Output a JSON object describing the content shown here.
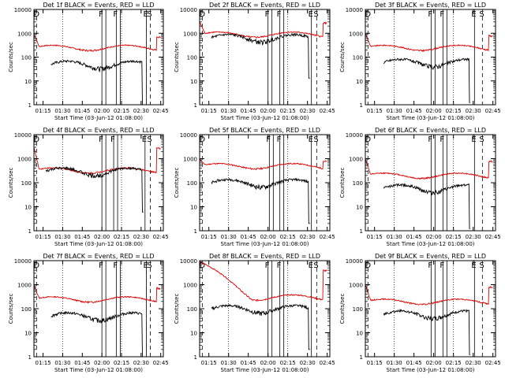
{
  "figure": {
    "colors": {
      "events": "#000000",
      "lld": "#dd0000",
      "background": "#ffffff"
    }
  },
  "chart_data": [
    {
      "type": "line",
      "title": "Det 1f BLACK = Events, RED = LLD",
      "xlabel": "Start Time (03-Jun-12 01:08:00)",
      "ylabel": "Counts/sec",
      "x_ticks": [
        "01:15",
        "01:30",
        "01:45",
        "02:00",
        "02:15",
        "02:30",
        "02:45"
      ],
      "y_ticks": [
        "1",
        "10",
        "100",
        "1000",
        "10000"
      ],
      "ylim": [
        1,
        10000
      ],
      "scale_y": "log",
      "markers": [
        {
          "label": "D",
          "time": "01:10"
        },
        {
          "label": "F",
          "time": "02:00"
        },
        {
          "label": "F",
          "time": "02:11"
        },
        {
          "label": "E",
          "time": "02:34"
        },
        {
          "label": "S",
          "time": "02:37"
        }
      ],
      "events": {
        "start": "01:21",
        "end": "02:32",
        "level": 50
      },
      "lld": {
        "start": "01:08",
        "end": "02:45",
        "level": 250,
        "start_level": 900,
        "end_level": 900
      },
      "series": [
        {
          "name": "Events"
        },
        {
          "name": "LLD"
        }
      ]
    },
    {
      "type": "line",
      "title": "Det 2f BLACK = Events, RED = LLD",
      "xlabel": "Start Time (03-Jun-12 01:08:00)",
      "ylabel": "Counts/sec",
      "x_ticks": [
        "01:15",
        "01:30",
        "01:45",
        "02:00",
        "02:15",
        "02:30",
        "02:45"
      ],
      "y_ticks": [
        "1",
        "10",
        "100",
        "1000",
        "10000"
      ],
      "ylim": [
        1,
        10000
      ],
      "scale_y": "log",
      "markers": [
        {
          "label": "D",
          "time": "01:10"
        },
        {
          "label": "F",
          "time": "02:00"
        },
        {
          "label": "F",
          "time": "02:09"
        },
        {
          "label": "E",
          "time": "02:33"
        },
        {
          "label": "S",
          "time": "02:37"
        }
      ],
      "events": {
        "start": "01:17",
        "end": "02:32",
        "level": 650
      },
      "lld": {
        "start": "01:08",
        "end": "02:45",
        "level": 900,
        "start_level": 3000,
        "end_level": 3500
      },
      "series": [
        {
          "name": "Events"
        },
        {
          "name": "LLD"
        }
      ]
    },
    {
      "type": "line",
      "title": "Det 3f BLACK = Events, RED = LLD",
      "xlabel": "Start Time (03-Jun-12 01:08:00)",
      "ylabel": "Counts/sec",
      "x_ticks": [
        "01:15",
        "01:30",
        "01:45",
        "02:00",
        "02:15",
        "02:30",
        "02:45"
      ],
      "y_ticks": [
        "1",
        "10",
        "100",
        "1000",
        "10000"
      ],
      "ylim": [
        1,
        10000
      ],
      "scale_y": "log",
      "markers": [
        {
          "label": "D",
          "time": "01:10"
        },
        {
          "label": "F",
          "time": "01:58"
        },
        {
          "label": "F",
          "time": "02:07"
        },
        {
          "label": "E",
          "time": "02:31"
        },
        {
          "label": "S",
          "time": "02:37"
        }
      ],
      "events": {
        "start": "01:22",
        "end": "02:28",
        "level": 60
      },
      "lld": {
        "start": "01:08",
        "end": "02:45",
        "level": 250,
        "start_level": 1000,
        "end_level": 1000
      },
      "series": [
        {
          "name": "Events"
        },
        {
          "name": "LLD"
        }
      ]
    },
    {
      "type": "line",
      "title": "Det 4f BLACK = Events, RED = LLD",
      "xlabel": "Start Time (03-Jun-12 01:08:00)",
      "ylabel": "Counts/sec",
      "x_ticks": [
        "01:15",
        "01:30",
        "01:45",
        "02:00",
        "02:15",
        "02:30",
        "02:45"
      ],
      "y_ticks": [
        "1",
        "10",
        "100",
        "1000",
        "10000"
      ],
      "ylim": [
        1,
        10000
      ],
      "scale_y": "log",
      "markers": [
        {
          "label": "D",
          "time": "01:10"
        },
        {
          "label": "F",
          "time": "02:00"
        },
        {
          "label": "F",
          "time": "02:09"
        },
        {
          "label": "E",
          "time": "02:33"
        },
        {
          "label": "S",
          "time": "02:37"
        }
      ],
      "events": {
        "start": "01:17",
        "end": "02:32",
        "level": 300
      },
      "lld": {
        "start": "01:08",
        "end": "02:45",
        "level": 330,
        "start_level": 3000,
        "end_level": 3500
      },
      "series": [
        {
          "name": "Events"
        },
        {
          "name": "LLD"
        }
      ]
    },
    {
      "type": "line",
      "title": "Det 5f BLACK = Events, RED = LLD",
      "xlabel": "Start Time (03-Jun-12 01:08:00)",
      "ylabel": "Counts/sec",
      "x_ticks": [
        "01:15",
        "01:30",
        "01:45",
        "02:00",
        "02:15",
        "02:30",
        "02:45"
      ],
      "y_ticks": [
        "1",
        "10",
        "100",
        "1000",
        "10000"
      ],
      "ylim": [
        1,
        10000
      ],
      "scale_y": "log",
      "markers": [
        {
          "label": "D",
          "time": "01:10"
        },
        {
          "label": "F",
          "time": "02:01"
        },
        {
          "label": "F",
          "time": "02:09"
        },
        {
          "label": "E",
          "time": "02:33"
        },
        {
          "label": "S",
          "time": "02:37"
        }
      ],
      "events": {
        "start": "01:17",
        "end": "02:32",
        "level": 100
      },
      "lld": {
        "start": "01:08",
        "end": "02:45",
        "level": 500,
        "start_level": 1000,
        "end_level": 1000
      },
      "series": [
        {
          "name": "Events"
        },
        {
          "name": "LLD"
        }
      ]
    },
    {
      "type": "line",
      "title": "Det 6f BLACK = Events, RED = LLD",
      "xlabel": "Start Time (03-Jun-12 01:08:00)",
      "ylabel": "Counts/sec",
      "x_ticks": [
        "01:15",
        "01:30",
        "01:45",
        "02:00",
        "02:15",
        "02:30",
        "02:45"
      ],
      "y_ticks": [
        "1",
        "10",
        "100",
        "1000",
        "10000"
      ],
      "ylim": [
        1,
        10000
      ],
      "scale_y": "log",
      "markers": [
        {
          "label": "D",
          "time": "01:10"
        },
        {
          "label": "F",
          "time": "01:58"
        },
        {
          "label": "F",
          "time": "02:07"
        },
        {
          "label": "E",
          "time": "02:31"
        },
        {
          "label": "S",
          "time": "02:37"
        }
      ],
      "events": {
        "start": "01:22",
        "end": "02:28",
        "level": 60
      },
      "lld": {
        "start": "01:08",
        "end": "02:45",
        "level": 200,
        "start_level": 1000,
        "end_level": 1000
      },
      "series": [
        {
          "name": "Events"
        },
        {
          "name": "LLD"
        }
      ]
    },
    {
      "type": "line",
      "title": "Det 7f BLACK = Events, RED = LLD",
      "xlabel": "Start Time (03-Jun-12 01:08:00)",
      "ylabel": "Counts/sec",
      "x_ticks": [
        "01:15",
        "01:30",
        "01:45",
        "02:00",
        "02:15",
        "02:30",
        "02:45"
      ],
      "y_ticks": [
        "1",
        "10",
        "100",
        "1000",
        "10000"
      ],
      "ylim": [
        1,
        10000
      ],
      "scale_y": "log",
      "markers": [
        {
          "label": "D",
          "time": "01:10"
        },
        {
          "label": "F",
          "time": "02:00"
        },
        {
          "label": "F",
          "time": "02:11"
        },
        {
          "label": "E",
          "time": "02:34"
        },
        {
          "label": "S",
          "time": "02:37"
        }
      ],
      "events": {
        "start": "01:21",
        "end": "02:32",
        "level": 50
      },
      "lld": {
        "start": "01:08",
        "end": "02:45",
        "level": 250,
        "start_level": 900,
        "end_level": 900
      },
      "series": [
        {
          "name": "Events"
        },
        {
          "name": "LLD"
        }
      ]
    },
    {
      "type": "line",
      "title": "Det 8f BLACK = Events, RED = LLD",
      "xlabel": "Start Time (03-Jun-12 01:08:00)",
      "ylabel": "Counts/sec",
      "x_ticks": [
        "01:15",
        "01:30",
        "01:45",
        "02:00",
        "02:15",
        "02:30",
        "02:45"
      ],
      "y_ticks": [
        "1",
        "10",
        "100",
        "1000",
        "10000"
      ],
      "ylim": [
        1,
        10000
      ],
      "scale_y": "log",
      "markers": [
        {
          "label": "D",
          "time": "01:10"
        },
        {
          "label": "F",
          "time": "02:00"
        },
        {
          "label": "F",
          "time": "02:09"
        },
        {
          "label": "E",
          "time": "02:33"
        },
        {
          "label": "S",
          "time": "02:37"
        }
      ],
      "events": {
        "start": "01:17",
        "end": "02:32",
        "level": 100
      },
      "lld": {
        "start": "01:08",
        "end": "02:45",
        "level": 300,
        "start_level": 9000,
        "end_level": 5000
      },
      "series": [
        {
          "name": "Events"
        },
        {
          "name": "LLD"
        }
      ]
    },
    {
      "type": "line",
      "title": "Det 9f BLACK = Events, RED = LLD",
      "xlabel": "Start Time (03-Jun-12 01:08:00)",
      "ylabel": "Counts/sec",
      "x_ticks": [
        "01:15",
        "01:30",
        "01:45",
        "02:00",
        "02:15",
        "02:30",
        "02:45"
      ],
      "y_ticks": [
        "1",
        "10",
        "100",
        "1000",
        "10000"
      ],
      "ylim": [
        1,
        10000
      ],
      "scale_y": "log",
      "markers": [
        {
          "label": "D",
          "time": "01:10"
        },
        {
          "label": "F",
          "time": "01:58"
        },
        {
          "label": "F",
          "time": "02:07"
        },
        {
          "label": "E",
          "time": "02:31"
        },
        {
          "label": "S",
          "time": "02:37"
        }
      ],
      "events": {
        "start": "01:22",
        "end": "02:28",
        "level": 60
      },
      "lld": {
        "start": "01:08",
        "end": "02:45",
        "level": 200,
        "start_level": 1000,
        "end_level": 1000
      },
      "series": [
        {
          "name": "Events"
        },
        {
          "name": "LLD"
        }
      ]
    }
  ]
}
